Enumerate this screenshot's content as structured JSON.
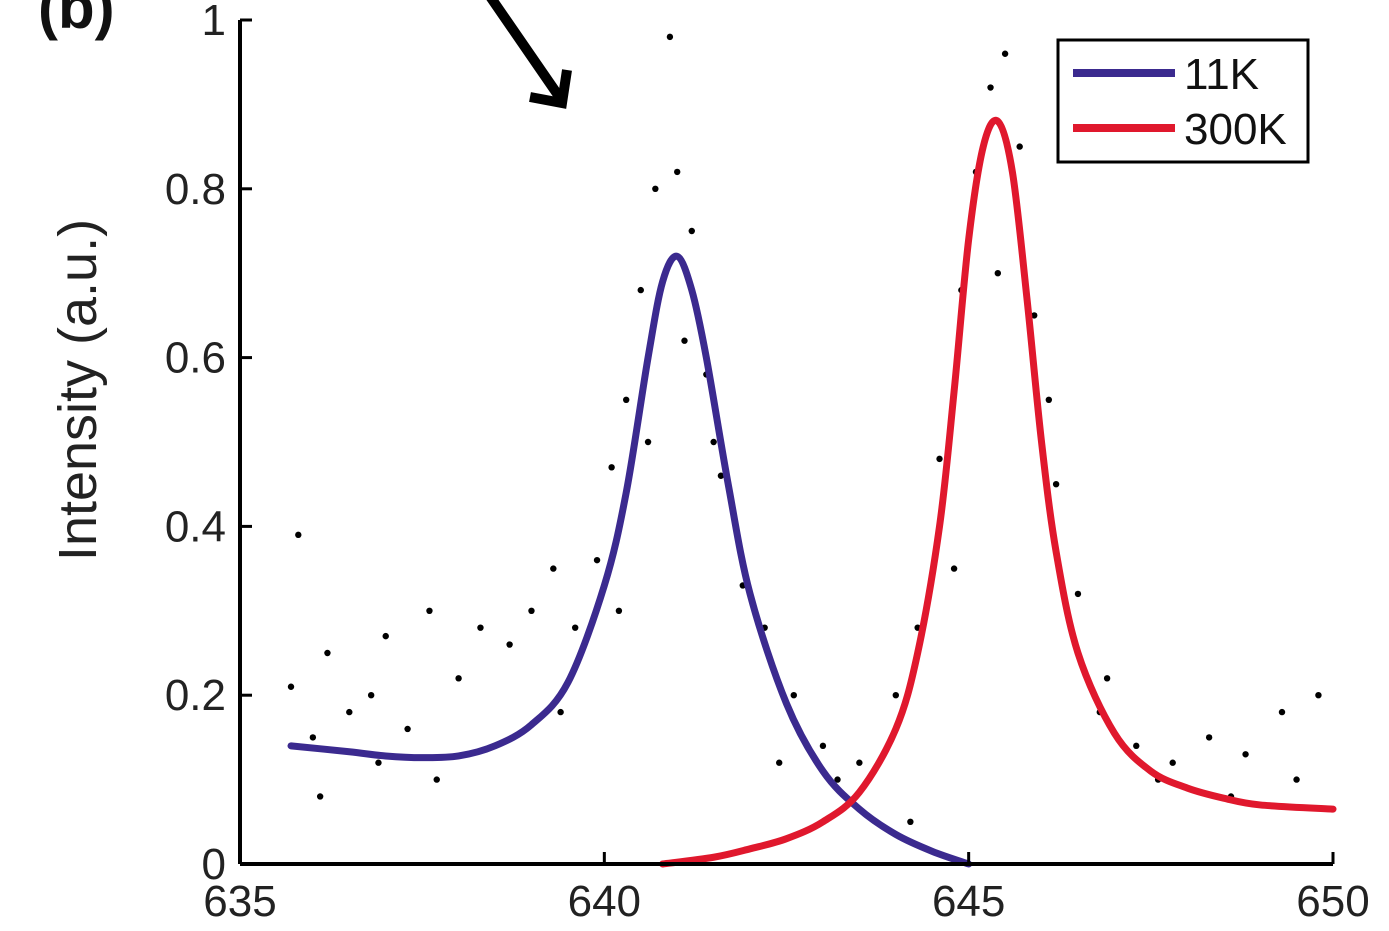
{
  "chart_data": {
    "type": "scatter",
    "panel_label": "(b)",
    "title": "",
    "xlabel": "",
    "ylabel": "Intensity (a.u.)",
    "xlim": [
      635,
      650
    ],
    "ylim": [
      0,
      1
    ],
    "x_ticks": [
      635,
      640,
      645,
      650
    ],
    "y_ticks": [
      0,
      0.2,
      0.4,
      0.6,
      0.8,
      1
    ],
    "y_tick_labels": [
      "0",
      "0.2",
      "0.4",
      "0.6",
      "0.8",
      "1"
    ],
    "grid": false,
    "legend_position": "top-right",
    "series": [
      {
        "name": "11K",
        "kind": "fit-line",
        "color": "#3b2a8f",
        "x": [
          635.7,
          636.5,
          637.0,
          637.5,
          638.0,
          638.5,
          639.0,
          639.5,
          640.0,
          640.3,
          640.6,
          640.8,
          641.0,
          641.2,
          641.4,
          641.7,
          642.0,
          642.5,
          643.0,
          643.5,
          644.0,
          644.5,
          645.0
        ],
        "y": [
          0.14,
          0.133,
          0.128,
          0.126,
          0.128,
          0.14,
          0.165,
          0.215,
          0.33,
          0.44,
          0.6,
          0.69,
          0.72,
          0.68,
          0.6,
          0.45,
          0.32,
          0.19,
          0.11,
          0.065,
          0.035,
          0.015,
          0.0
        ]
      },
      {
        "name": "300K",
        "kind": "fit-line",
        "color": "#e0182d",
        "x": [
          640.8,
          641.5,
          642.0,
          642.5,
          643.0,
          643.5,
          644.0,
          644.3,
          644.6,
          644.8,
          645.0,
          645.2,
          645.4,
          645.6,
          645.8,
          646.0,
          646.2,
          646.5,
          647.0,
          647.5,
          648.0,
          648.5,
          649.0,
          650.0
        ],
        "y": [
          0.0,
          0.008,
          0.018,
          0.03,
          0.05,
          0.085,
          0.16,
          0.25,
          0.4,
          0.56,
          0.74,
          0.85,
          0.88,
          0.82,
          0.67,
          0.5,
          0.37,
          0.25,
          0.155,
          0.11,
          0.09,
          0.078,
          0.07,
          0.065
        ]
      },
      {
        "name": "",
        "kind": "scatter",
        "color": "#000000",
        "x": [
          635.7,
          635.8,
          636.0,
          636.2,
          636.5,
          636.8,
          637.0,
          637.3,
          637.6,
          638.0,
          638.3,
          638.7,
          639.0,
          639.3,
          639.6,
          639.9,
          640.1,
          640.3,
          640.5,
          640.7,
          640.9,
          641.0,
          641.2,
          641.4,
          641.6,
          641.9,
          642.2,
          642.6,
          643.0,
          643.5,
          644.0,
          644.3,
          644.6,
          644.9,
          645.1,
          645.3,
          645.5,
          645.7,
          645.9,
          646.2,
          646.5,
          646.9,
          647.3,
          647.8,
          648.3,
          648.8,
          649.3,
          649.8,
          636.1,
          636.9,
          637.7,
          638.5,
          639.4,
          640.2,
          640.6,
          641.1,
          641.5,
          642.4,
          643.2,
          644.2,
          644.8,
          645.4,
          646.1,
          646.8,
          647.6,
          648.6,
          649.5
        ],
        "y": [
          0.21,
          0.39,
          0.15,
          0.25,
          0.18,
          0.2,
          0.27,
          0.16,
          0.3,
          0.22,
          0.28,
          0.26,
          0.3,
          0.35,
          0.28,
          0.36,
          0.47,
          0.55,
          0.68,
          0.8,
          0.98,
          0.82,
          0.75,
          0.58,
          0.46,
          0.33,
          0.28,
          0.2,
          0.14,
          0.12,
          0.2,
          0.28,
          0.48,
          0.68,
          0.82,
          0.92,
          0.96,
          0.85,
          0.65,
          0.45,
          0.32,
          0.22,
          0.14,
          0.12,
          0.15,
          0.13,
          0.18,
          0.2,
          0.08,
          0.12,
          0.1,
          0.14,
          0.18,
          0.3,
          0.5,
          0.62,
          0.5,
          0.12,
          0.1,
          0.05,
          0.35,
          0.7,
          0.55,
          0.18,
          0.1,
          0.08,
          0.1
        ]
      }
    ]
  }
}
